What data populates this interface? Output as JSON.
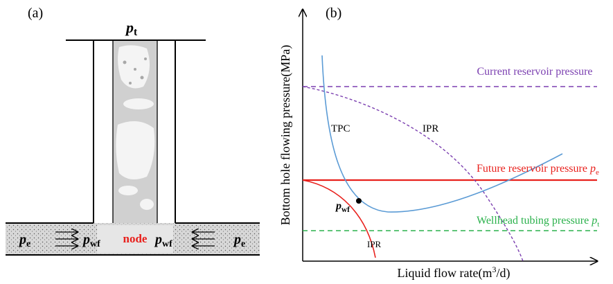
{
  "panel_a": {
    "label": "(a)",
    "top_pressure": {
      "symbol": "p",
      "sub": "t"
    },
    "left_reservoir": {
      "symbol": "p",
      "sub": "e"
    },
    "right_reservoir": {
      "symbol": "p",
      "sub": "e"
    },
    "left_bottom": {
      "symbol": "p",
      "sub": "wf"
    },
    "right_bottom": {
      "symbol": "p",
      "sub": "wf"
    },
    "node": "node"
  },
  "panel_b": {
    "label": "(b)",
    "y_axis_label": "Bottom hole flowing pressure(MPa)",
    "x_axis_label": {
      "before": "Liquid flow rate(m",
      "sup": "3",
      "after": "/d)"
    },
    "current_pressure": "Current reservoir pressure",
    "future_pressure": {
      "text": "Future reservoir pressure ",
      "symbol": "p",
      "sub": "e"
    },
    "wellhead_pressure": {
      "text": "Wellhead tubing pressure ",
      "symbol": "p",
      "sub": "t"
    },
    "tpc_label": "TPC",
    "ipr_current_label": "IPR",
    "ipr_future_label": "IPR",
    "operating_point": {
      "symbol": "p",
      "sub": "wf"
    }
  }
}
